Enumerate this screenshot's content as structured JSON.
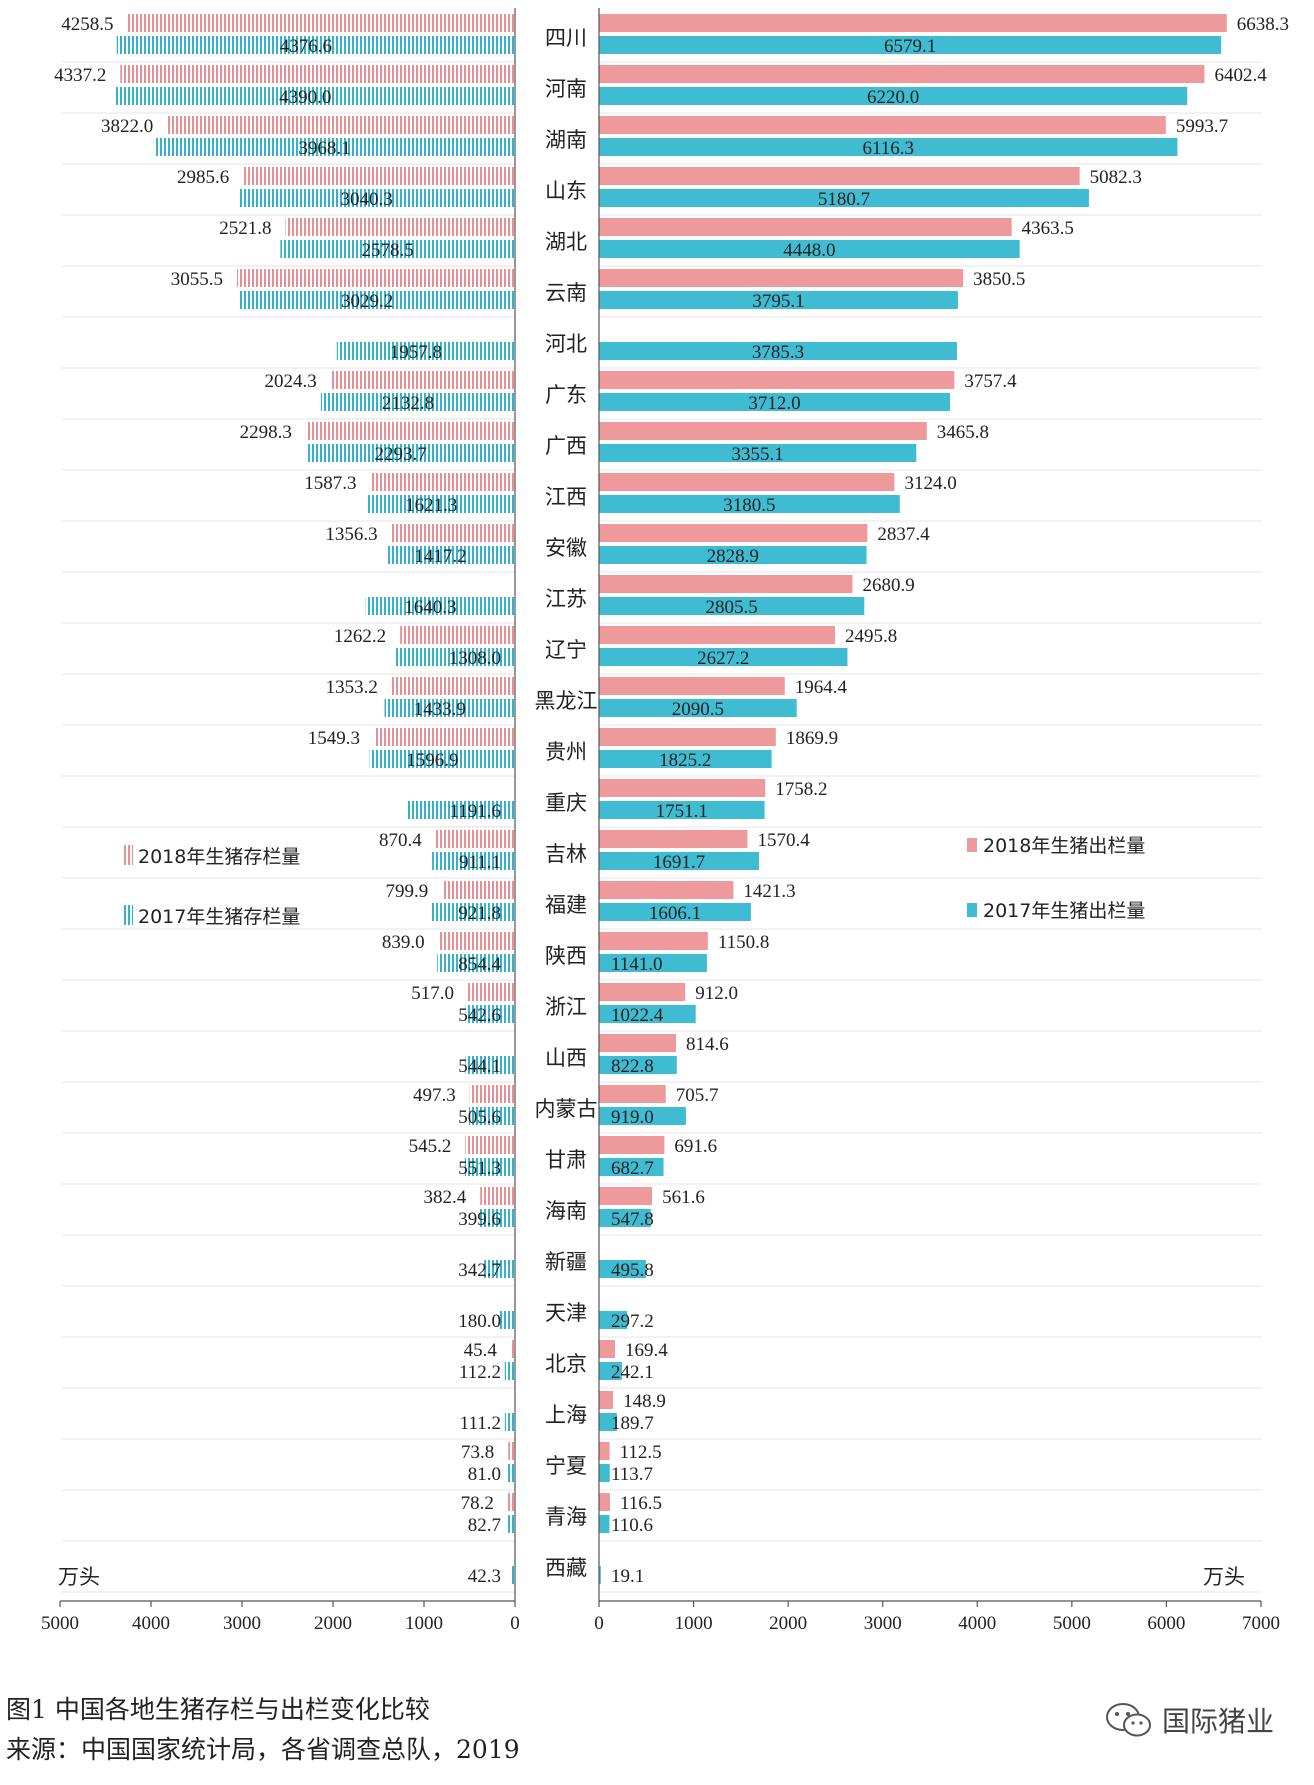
{
  "colors": {
    "pink": "#ee9a9d",
    "teal": "#40bcd2",
    "pink_hatch": "#e88f94",
    "teal_hatch": "#33b2c9"
  },
  "caption": {
    "line1": "图1 中国各地生猪存栏与出栏变化比较",
    "line2": "来源：中国国家统计局，各省调查总队，2019"
  },
  "watermark": {
    "icon": "wechat-icon",
    "text": "国际猪业"
  },
  "chart_data": {
    "type": "bar",
    "orientation": "horizontal-butterfly",
    "categories": [
      "四川",
      "河南",
      "湖南",
      "山东",
      "湖北",
      "云南",
      "河北",
      "广东",
      "广西",
      "江西",
      "安徽",
      "江苏",
      "辽宁",
      "黑龙江",
      "贵州",
      "重庆",
      "吉林",
      "福建",
      "陕西",
      "浙江",
      "山西",
      "内蒙古",
      "甘肃",
      "海南",
      "新疆",
      "天津",
      "北京",
      "上海",
      "宁夏",
      "青海",
      "西藏"
    ],
    "left": {
      "unit": "万头",
      "xlim": [
        5000,
        0
      ],
      "ticks": [
        "5000",
        "4000",
        "3000",
        "2000",
        "1000",
        "0"
      ],
      "series": [
        {
          "name": "2018年生猪存栏量",
          "values": [
            4258.5,
            4337.2,
            3822.0,
            2985.6,
            2521.8,
            3055.5,
            null,
            2024.3,
            2298.3,
            1587.3,
            1356.3,
            null,
            1262.2,
            1353.2,
            1549.3,
            null,
            870.4,
            799.9,
            839.0,
            517.0,
            null,
            497.3,
            545.2,
            382.4,
            null,
            null,
            45.4,
            null,
            73.8,
            78.2,
            null
          ],
          "labels": [
            "4258.5",
            "4337.2",
            "3822.0",
            "2985.6",
            "2521.8",
            "3055.5",
            null,
            "2024.3",
            "2298.3",
            "1587.3",
            "1356.3",
            null,
            "1262.2",
            "1353.2",
            "1549.3",
            null,
            "870.4",
            "799.9",
            "839.0",
            "517.0",
            null,
            "497.3",
            "545.2",
            "382.4",
            null,
            null,
            "45.4",
            null,
            "73.8",
            "78.2",
            null
          ]
        },
        {
          "name": "2017年生猪存栏量",
          "values": [
            4376.6,
            4390.0,
            3968.1,
            3040.3,
            2578.5,
            3029.2,
            1957.8,
            2132.8,
            2293.7,
            1621.3,
            1417.2,
            1640.3,
            1308.0,
            1433.9,
            1596.9,
            1191.6,
            911.1,
            921.8,
            854.4,
            542.6,
            544.1,
            505.6,
            551.3,
            399.6,
            342.7,
            180.0,
            112.2,
            111.2,
            81.0,
            82.7,
            42.3
          ],
          "labels": [
            "4376.6",
            "4390.0",
            "3968.1",
            "3040.3",
            "2578.5",
            "3029.2",
            "1957.8",
            "2132.8",
            "2293.7",
            "1621.3",
            "1417.2",
            "1640.3",
            "1308.0",
            "1433.9",
            "1596.9",
            "1191.6",
            "911.1",
            "921.8",
            "854.4",
            "542.6",
            "544.1",
            "505.6",
            "551.3",
            "399.6",
            "342.7",
            "180.0",
            "112.2",
            "111.2",
            "81.0",
            "82.7",
            "42.3"
          ]
        }
      ]
    },
    "right": {
      "unit": "万头",
      "xlim": [
        0,
        7000
      ],
      "ticks": [
        "0",
        "1000",
        "2000",
        "3000",
        "4000",
        "5000",
        "6000",
        "7000"
      ],
      "series": [
        {
          "name": "2018年生猪出栏量",
          "values": [
            6638.3,
            6402.4,
            5993.7,
            5082.3,
            4363.5,
            3850.5,
            null,
            3757.4,
            3465.8,
            3124.0,
            2837.4,
            2680.9,
            2495.8,
            1964.4,
            1869.9,
            1758.2,
            1570.4,
            1421.3,
            1150.8,
            912.0,
            814.6,
            705.7,
            691.6,
            561.6,
            null,
            null,
            169.4,
            148.9,
            112.5,
            116.5,
            null
          ],
          "labels": [
            "6638.3",
            "6402.4",
            "5993.7",
            "5082.3",
            "4363.5",
            "3850.5",
            null,
            "3757.4",
            "3465.8",
            "3124.0",
            "2837.4",
            "2680.9",
            "2495.8",
            "1964.4",
            "1869.9",
            "1758.2",
            "1570.4",
            "1421.3",
            "1150.8",
            "912.0",
            "814.6",
            "705.7",
            "691.6",
            "561.6",
            null,
            null,
            "169.4",
            "148.9",
            "112.5",
            "116.5",
            null
          ]
        },
        {
          "name": "2017年生猪出栏量",
          "values": [
            6579.1,
            6220.0,
            6116.3,
            5180.7,
            4448.0,
            3795.1,
            3785.3,
            3712.0,
            3355.1,
            3180.5,
            2828.9,
            2805.5,
            2627.2,
            2090.5,
            1825.2,
            1751.1,
            1691.7,
            1606.1,
            1141.0,
            1022.4,
            822.8,
            919.0,
            682.7,
            547.8,
            495.8,
            297.2,
            242.1,
            189.7,
            113.7,
            110.6,
            19.1
          ],
          "labels": [
            "6579.1",
            "6220.0",
            "6116.3",
            "5180.7",
            "4448.0",
            "3795.1",
            "3785.3",
            "3712.0",
            "3355.1",
            "3180.5",
            "2828.9",
            "2805.5",
            "2627.2",
            "2090.5",
            "1825.2",
            "1751.1",
            "1691.7",
            "1606.1",
            "1141.0",
            "1022.4",
            "822.8",
            "919.0",
            "682.7",
            "547.8",
            "495.8",
            "297.2",
            "242.1",
            "189.7",
            "113.7",
            "110.6",
            "19.1"
          ]
        }
      ]
    },
    "title": "",
    "xlabel_left": "万头",
    "xlabel_right": "万头",
    "grid": "horizontal"
  }
}
